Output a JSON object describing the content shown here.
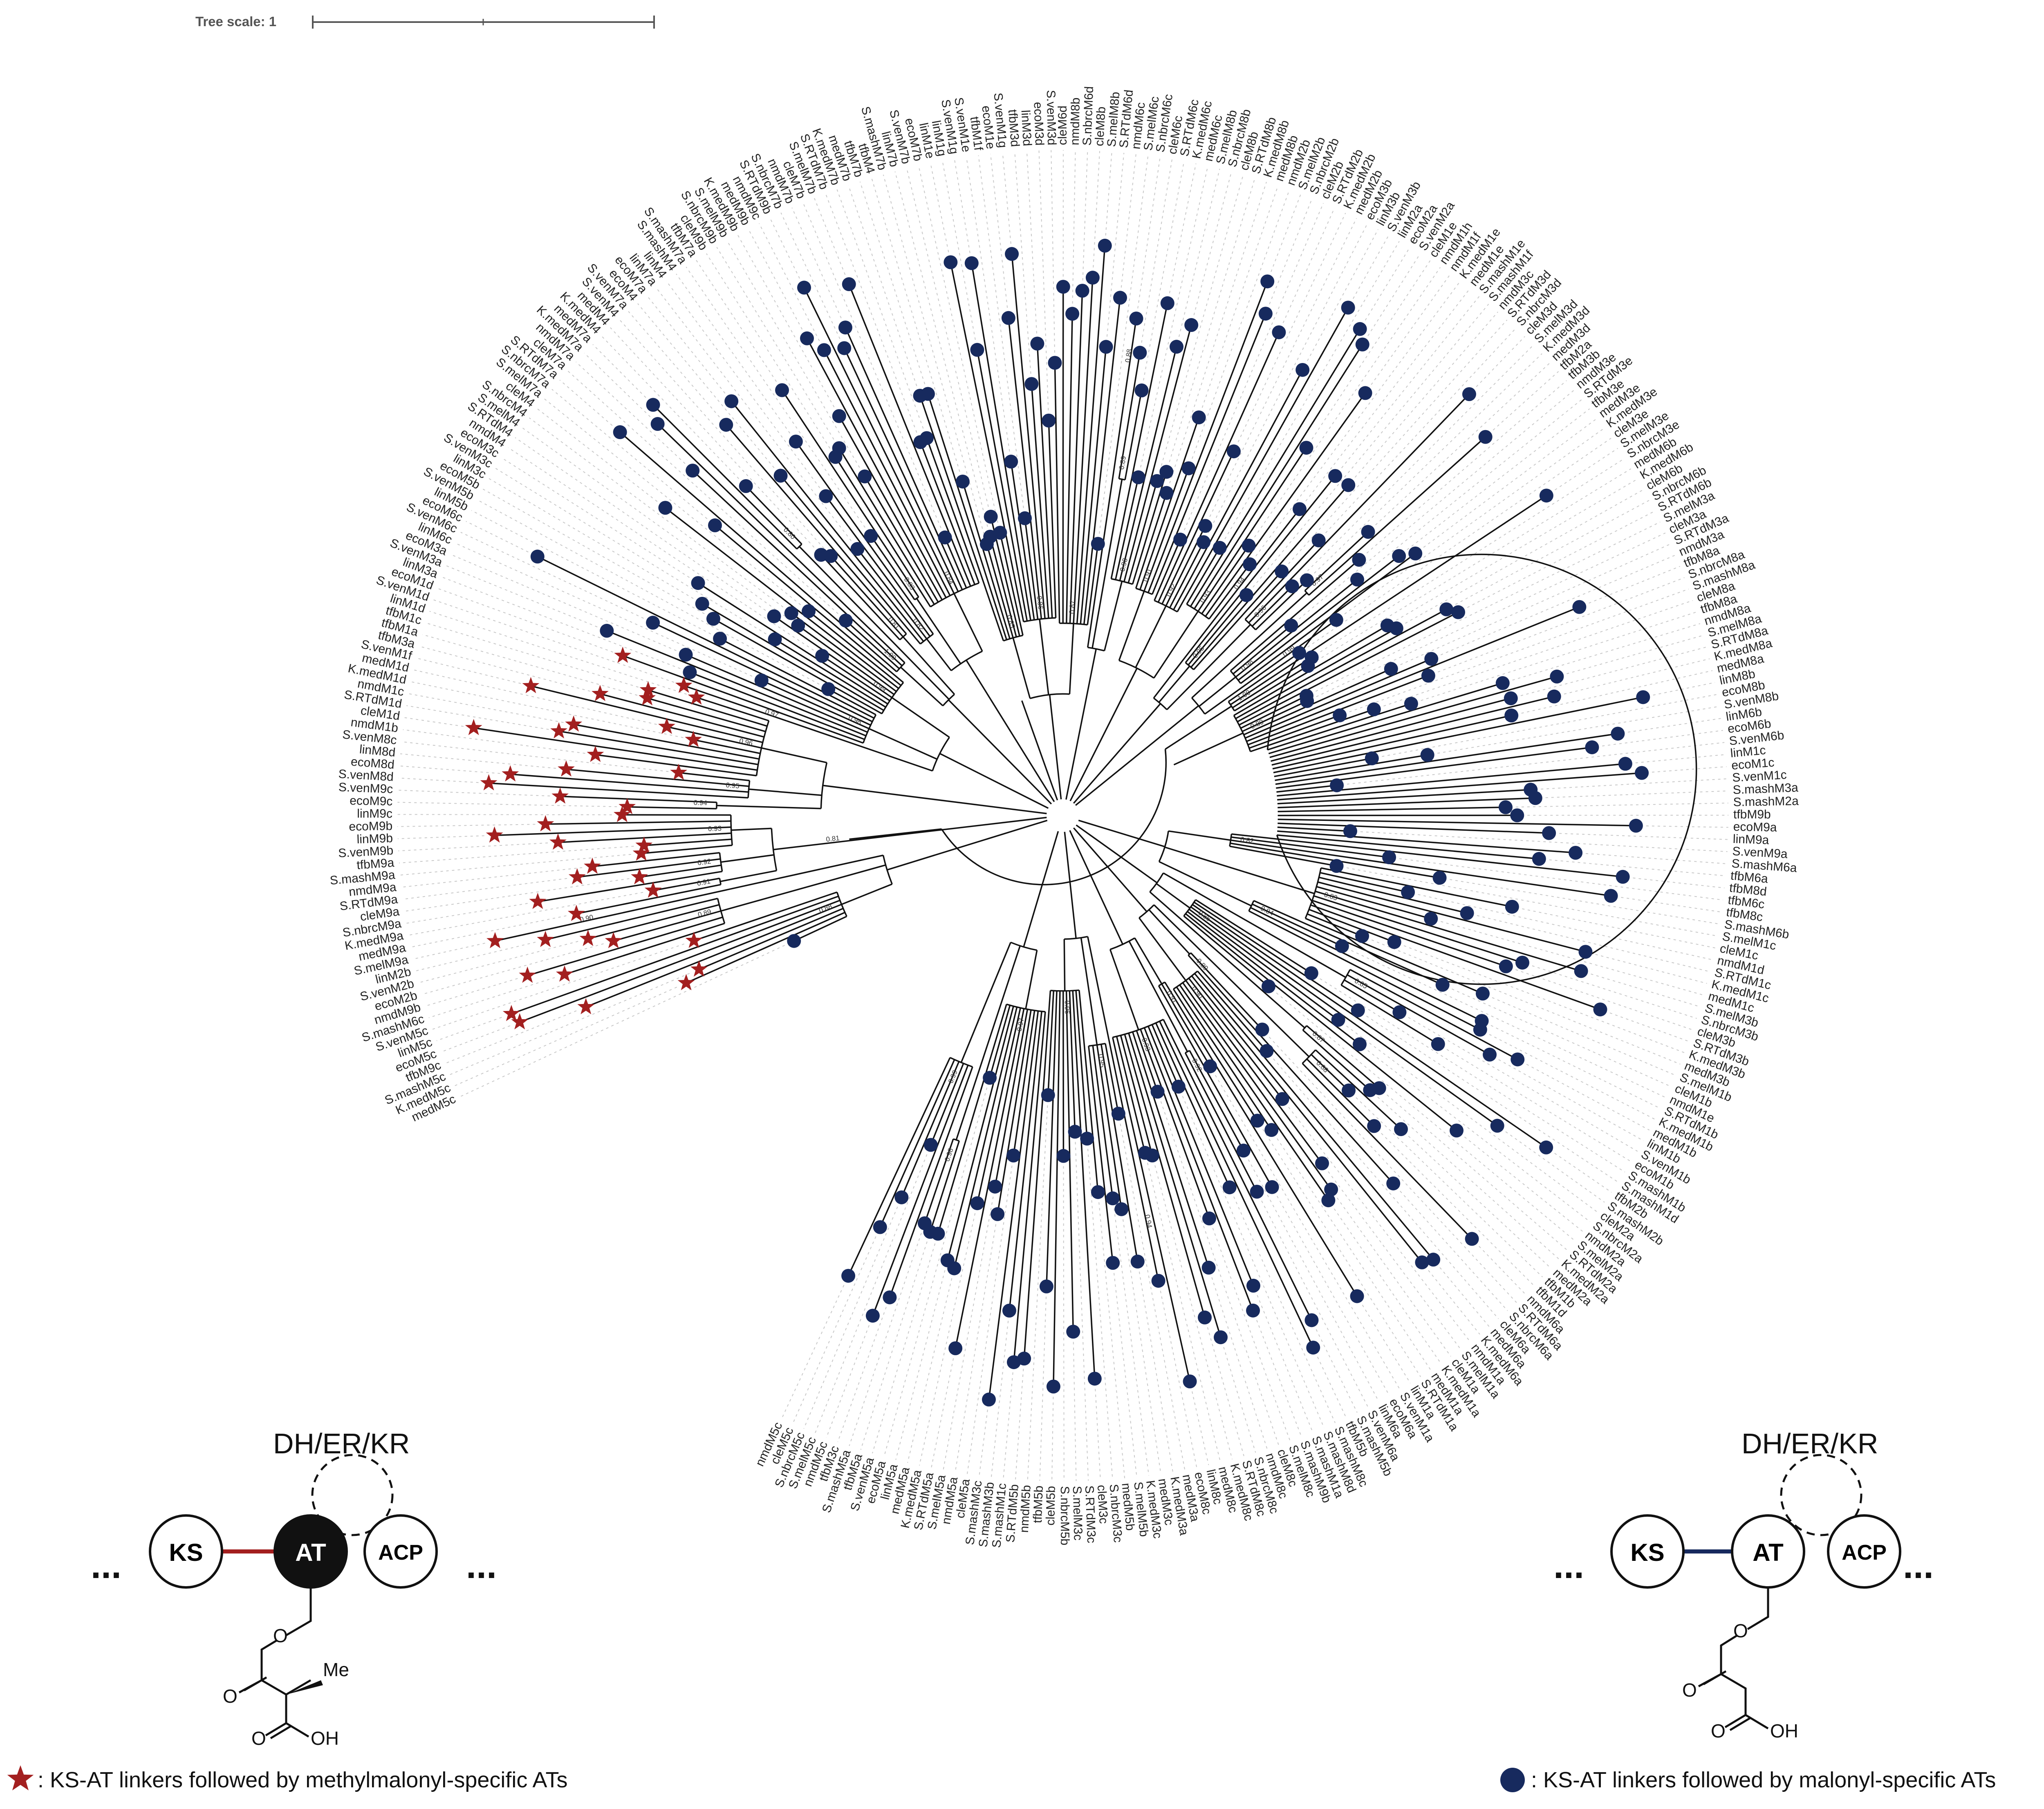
{
  "scale_bar": {
    "label": "Tree scale: 1"
  },
  "colors": {
    "methylmalonyl": "#a31f1f",
    "malonyl": "#172a5e",
    "branch": "#111111",
    "guide": "#c8c8c8"
  },
  "leaves": [
    "nmdM5c",
    "cleM5c",
    "S.nbrcM5c",
    "S.melM5c",
    "nmdM5c",
    "tfbM3c",
    "S.mashM5a",
    "tfbM5a",
    "S.venM5a",
    "ecoM5a",
    "linM5a",
    "medM5a",
    "K.medM5a",
    "S.RTdM5a",
    "S.melM5a",
    "nmdM5a",
    "cleM5a",
    "S.mashM3c",
    "S.mashM3b",
    "S.mashM1c",
    "S.RTdM5b",
    "nmdM5b",
    "tfbM5b",
    "cleM5b",
    "S.nbrcM5b",
    "S.melM3c",
    "S.RTdM3c",
    "cleM3c",
    "S.nbrcM3c",
    "medM5b",
    "S.melM5b",
    "K.medM3c",
    "medM3c",
    "K.medM3a",
    "medM3a",
    "ecoM8c",
    "linM8c",
    "medM8c",
    "K.medM8c",
    "S.RTdM8c",
    "S.nbrcM8c",
    "nmdM8c",
    "cleM8c",
    "S.melM8c",
    "S.mashM9b",
    "S.mashM1a",
    "S.mashM8d",
    "S.mashM8c",
    "tfbM5b",
    "S.mashM5b",
    "S.venM6a",
    "linM6a",
    "ecoM6a",
    "S.venM1a",
    "linM1a",
    "S.RTdM1a",
    "medM1a",
    "K.medM1a",
    "cleM1a",
    "S.melM1a",
    "nmdM1a",
    "K.medM6a",
    "medM6a",
    "cleM6a",
    "S.nbrcM6a",
    "S.RTdM6a",
    "nmdM6a",
    "tfbM1d",
    "tfbM1b",
    "medM2a",
    "K.medM2a",
    "S.RTdM2a",
    "S.melM2a",
    "nmdM2a",
    "S.nbrcM2a",
    "cleM2a",
    "S.mashM2b",
    "tfbM2b",
    "S.mashM1d",
    "S.mashM1b",
    "ecoM1b",
    "S.venM1b",
    "linM1b",
    "medM1b",
    "K.medM1b",
    "S.RTdM1b",
    "nmdM1e",
    "cleM1b",
    "S.melM1b",
    "medM3b",
    "K.medM3b",
    "S.RTdM3b",
    "cleM3b",
    "S.nbrcM3b",
    "S.melM3b",
    "medM1c",
    "K.medM1c",
    "S.RTdM1c",
    "nmdM1d",
    "cleM1c",
    "S.melM1c",
    "S.mashM6b",
    "tfbM8c",
    "tfbM6c",
    "tfbM8d",
    "tfbM6a",
    "S.mashM6a",
    "S.venM9a",
    "linM9a",
    "ecoM9a",
    "tfbM9b",
    "S.mashM2a",
    "S.mashM3a",
    "S.venM1c",
    "ecoM1c",
    "linM1c",
    "S.venM6b",
    "ecoM6b",
    "linM6b",
    "S.venM8b",
    "ecoM8b",
    "linM8b",
    "medM8a",
    "K.medM8a",
    "S.RTdM8a",
    "S.melM8a",
    "nmdM8a",
    "tfbM8a",
    "cleM8a",
    "S.mashM8a",
    "S.nbrcM8a",
    "tfbM8a",
    "nmdM3a",
    "S.RTdM3a",
    "cleM3a",
    "S.melM3a",
    "S.RTdM6b",
    "S.nbrcM6b",
    "cleM6b",
    "K.medM6b",
    "medM6b",
    "S.nbrcM3e",
    "S.melM3e",
    "cleM3e",
    "K.medM3e",
    "medM3e",
    "tfbM3e",
    "S.RTdM3e",
    "nmdM3e",
    "tfbM3b",
    "tfbM2a",
    "medM3d",
    "K.medM3d",
    "S.melM3d",
    "cleM3d",
    "S.nbrcM3d",
    "S.RTdM3d",
    "nmdM3c",
    "S.mashM1f",
    "S.mashM1e",
    "medM1e",
    "K.medM1e",
    "nmdM1f",
    "nmdM1h",
    "cleM1e",
    "S.venM2a",
    "ecoM2a",
    "linM2a",
    "S.venM3b",
    "linM3b",
    "ecoM3b",
    "medM2b",
    "K.medM2b",
    "S.RTdM2b",
    "cleM2b",
    "S.nbrcM2b",
    "S.melM2b",
    "nmdM2b",
    "medM8b",
    "K.medM8b",
    "S.RTdM8b",
    "cleM8b",
    "S.nbrcM8b",
    "S.melM8b",
    "medM6c",
    "K.medM6c",
    "S.RTdM6c",
    "cleM6c",
    "S.nbrcM6c",
    "S.melM6c",
    "nmdM6c",
    "S.RTdM6d",
    "S.melM8b",
    "cleM8b",
    "S.nbrcM6d",
    "nmdM8b",
    "cleM6d",
    "S.venM3d",
    "ecoM3d",
    "linM3d",
    "tfbM3d",
    "S.venM1g",
    "ecoM1e",
    "tfbM1f",
    "S.venM1e",
    "S.venM1g",
    "linM1g",
    "linM1e",
    "ecoM7b",
    "S.venM7b",
    "linM7b",
    "S.mashM7b",
    "tfbM4",
    "tfbM7b",
    "medM7b",
    "K.medM7b",
    "S.RTdM7b",
    "S.melM7b",
    "cleM7b",
    "nmdM7b",
    "S.nbrcM7b",
    "S.RTdM9b",
    "nmdM9c",
    "medM9b",
    "K.medM9b",
    "S.melM9b",
    "S.nbrcM9b",
    "cleM9b",
    "tfbM7a",
    "S.mashM7a",
    "S.mashM4",
    "linM4",
    "linM7a",
    "ecoM7a",
    "ecoM4",
    "S.venM7a",
    "S.venM4",
    "medM4",
    "K.medM4",
    "medM7a",
    "K.medM7a",
    "nmdM7a",
    "cleM7a",
    "S.RTdM7a",
    "S.nbrcM7a",
    "S.melM7a",
    "cleM4",
    "S.nbrcM4",
    "S.melM4",
    "S.RTdM4",
    "nmdM4",
    "ecoM3c",
    "S.venM3c",
    "linM3c",
    "ecoM5b",
    "S.venM5b",
    "linM5b",
    "ecoM6c",
    "S.venM6c",
    "linM6c",
    "ecoM3a",
    "S.venM3a",
    "linM3a",
    "ecoM1d",
    "S.venM1d",
    "linM1d",
    "tfbM1c",
    "tfbM1a",
    "tfbM3a",
    "S.venM1f",
    "medM1d",
    "K.medM1d",
    "nmdM1c",
    "S.RTdM1d",
    "cleM1d",
    "nmdM1b",
    "S.venM8c",
    "linM8d",
    "ecoM8d",
    "S.venM8d",
    "S.venM9c",
    "ecoM9c",
    "linM9c",
    "ecoM9b",
    "linM9b",
    "S.venM9b",
    "tfbM9a",
    "S.mashM9a",
    "nmdM9a",
    "S.RTdM9a",
    "cleM9a",
    "S.nbrcM9a",
    "K.medM9a",
    "medM9a",
    "S.melM9a",
    "linM2b",
    "S.venM2b",
    "ecoM2b",
    "nmdM9b",
    "S.mashM6c",
    "S.venM5c",
    "linM5c",
    "ecoM5c",
    "tfbM9c",
    "S.mashM5c",
    "K.medM5c",
    "medM5c"
  ],
  "support_values": [
    "0.99",
    "0.98",
    "0.97",
    "0.96",
    "0.95",
    "0.94",
    "0.93",
    "0.92",
    "0.91",
    "0.90",
    "0.89",
    "0.88",
    "0.87",
    "0.86",
    "0.85",
    "0.84",
    "0.83",
    "0.82",
    "0.81",
    "0.80",
    "1.00"
  ],
  "left_diagram": {
    "header": "DH/ER/KR",
    "ks": "KS",
    "at": "AT",
    "acp": "ACP",
    "ellipsis": "...",
    "o_label": "O",
    "me_label": "Me",
    "oh_label": "OH"
  },
  "right_diagram": {
    "header": "DH/ER/KR",
    "ks": "KS",
    "at": "AT",
    "acp": "ACP",
    "ellipsis": "...",
    "o_label": "O",
    "oh_label": "OH"
  },
  "legend": {
    "star_text": ":   KS-AT linkers followed by methylmalonyl-specific ATs",
    "circle_text": ":   KS-AT linkers followed by malonyl-specific ATs"
  }
}
